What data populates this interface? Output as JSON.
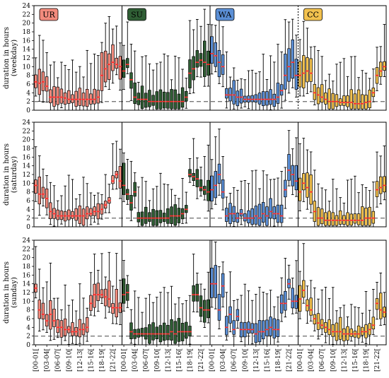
{
  "chart_data": {
    "type": "box",
    "title": "",
    "y_range": [
      0,
      24
    ],
    "y_ticks": [
      0,
      2,
      4,
      6,
      8,
      10,
      12,
      14,
      16,
      18,
      20,
      22,
      24
    ],
    "reference_line_y": 2,
    "categories": [
      "UR",
      "SU",
      "WA",
      "CC"
    ],
    "colors": {
      "UR": "#f28b7d",
      "SU": "#2f5e34",
      "WA": "#5b8fd6",
      "CC": "#f2c14e"
    },
    "median_color": "#ff2a2a",
    "x_tick_labels": [
      "[00-01[",
      "[03-04[",
      "[06-07[",
      "[09-10[",
      "[12-13[",
      "[15-16[",
      "[18-19[",
      "[21-22["
    ],
    "panels": [
      {
        "ylabel": "duration in hours\n(weekday)",
        "series": [
          {
            "name": "UR",
            "medians": [
              6.5,
              6.2,
              6.5,
              5.5,
              3.0,
              3.0,
              3.0,
              3.0,
              2.8,
              2.5,
              2.5,
              2.5,
              2.5,
              2.5,
              2.5,
              2.5,
              2.5,
              3.0,
              8.0,
              9.5,
              10.5,
              11.0,
              10.5,
              10.0
            ]
          },
          {
            "name": "SU",
            "medians": [
              9.0,
              10.5,
              7.0,
              3.0,
              2.5,
              2.5,
              2.5,
              2.0,
              2.0,
              2.0,
              2.0,
              2.0,
              2.0,
              2.0,
              2.0,
              2.0,
              2.0,
              3.0,
              8.5,
              9.5,
              11.0,
              11.5,
              11.0,
              10.5
            ]
          },
          {
            "name": "WA",
            "medians": [
              13.0,
              12.5,
              11.0,
              10.0,
              3.5,
              3.5,
              3.5,
              3.0,
              3.0,
              2.5,
              2.5,
              2.5,
              2.5,
              2.5,
              2.5,
              2.5,
              2.5,
              2.5,
              3.0,
              4.5,
              8.0,
              10.0,
              11.0,
              8.0
            ]
          },
          {
            "name": "CC",
            "medians": [
              8.0,
              8.5,
              9.0,
              8.5,
              4.0,
              3.5,
              3.0,
              2.5,
              2.0,
              2.0,
              2.0,
              1.8,
              1.8,
              1.8,
              1.8,
              1.5,
              1.5,
              1.5,
              1.8,
              2.0,
              4.0,
              8.0,
              9.0,
              10.0
            ]
          }
        ]
      },
      {
        "ylabel": "duration in hours\n(saturday)",
        "series": [
          {
            "name": "UR",
            "medians": [
              9.5,
              7.5,
              7.5,
              6.5,
              3.5,
              3.0,
              2.5,
              2.5,
              2.5,
              2.5,
              2.5,
              2.5,
              2.5,
              2.5,
              3.0,
              3.0,
              3.5,
              3.5,
              4.0,
              5.0,
              6.0,
              10.5,
              12.0,
              10.5
            ]
          },
          {
            "name": "SU",
            "medians": [
              9.5,
              7.5,
              5.5,
              8.0,
              2.0,
              2.0,
              2.0,
              2.0,
              2.0,
              2.0,
              2.0,
              2.0,
              2.0,
              2.5,
              2.5,
              2.5,
              3.0,
              4.0,
              12.0,
              11.5,
              11.0,
              9.0,
              8.5,
              8.0
            ]
          },
          {
            "name": "WA",
            "medians": [
              8.5,
              9.5,
              12.0,
              8.0,
              2.5,
              3.0,
              3.0,
              2.0,
              3.0,
              2.0,
              2.0,
              2.0,
              2.5,
              2.0,
              3.0,
              2.5,
              3.5,
              3.0,
              3.0,
              2.5,
              8.5,
              13.0,
              12.0,
              10.5
            ]
          },
          {
            "name": "CC",
            "medians": [
              8.0,
              10.0,
              9.0,
              8.0,
              3.5,
              2.0,
              2.0,
              1.5,
              1.5,
              1.5,
              1.5,
              1.5,
              1.5,
              1.5,
              1.5,
              1.5,
              1.5,
              1.5,
              2.0,
              2.0,
              2.0,
              8.5,
              9.0,
              9.5
            ]
          }
        ]
      },
      {
        "ylabel": "duration in hours\n(sunday)",
        "series": [
          {
            "name": "UR",
            "medians": [
              13.0,
              8.0,
              7.0,
              5.5,
              7.0,
              5.5,
              4.0,
              4.0,
              3.5,
              3.5,
              3.0,
              3.0,
              3.5,
              3.5,
              4.0,
              9.5,
              11.5,
              11.5,
              11.5,
              11.0,
              10.5,
              8.5,
              8.5,
              8.5
            ]
          },
          {
            "name": "SU",
            "medians": [
              11.5,
              12.0,
              3.0,
              2.5,
              2.5,
              2.5,
              2.5,
              2.5,
              2.5,
              2.5,
              2.5,
              2.5,
              2.5,
              3.0,
              2.5,
              3.0,
              3.0,
              3.0,
              3.0,
              11.5,
              11.5,
              8.5,
              8.0,
              8.0
            ]
          },
          {
            "name": "WA",
            "medians": [
              14.0,
              14.0,
              8.0,
              13.5,
              4.0,
              7.0,
              3.5,
              6.5,
              3.5,
              3.5,
              3.5,
              3.5,
              2.5,
              3.0,
              3.0,
              3.5,
              4.0,
              3.5,
              3.5,
              9.5,
              9.5,
              14.0,
              10.0,
              10.0
            ]
          },
          {
            "name": "CC",
            "medians": [
              10.5,
              12.5,
              9.0,
              8.0,
              6.0,
              5.0,
              4.5,
              4.0,
              3.5,
              3.0,
              3.0,
              3.0,
              2.5,
              2.5,
              2.5,
              2.5,
              2.5,
              3.0,
              3.0,
              3.5,
              4.5,
              9.5,
              8.0,
              7.5
            ]
          }
        ]
      }
    ]
  }
}
